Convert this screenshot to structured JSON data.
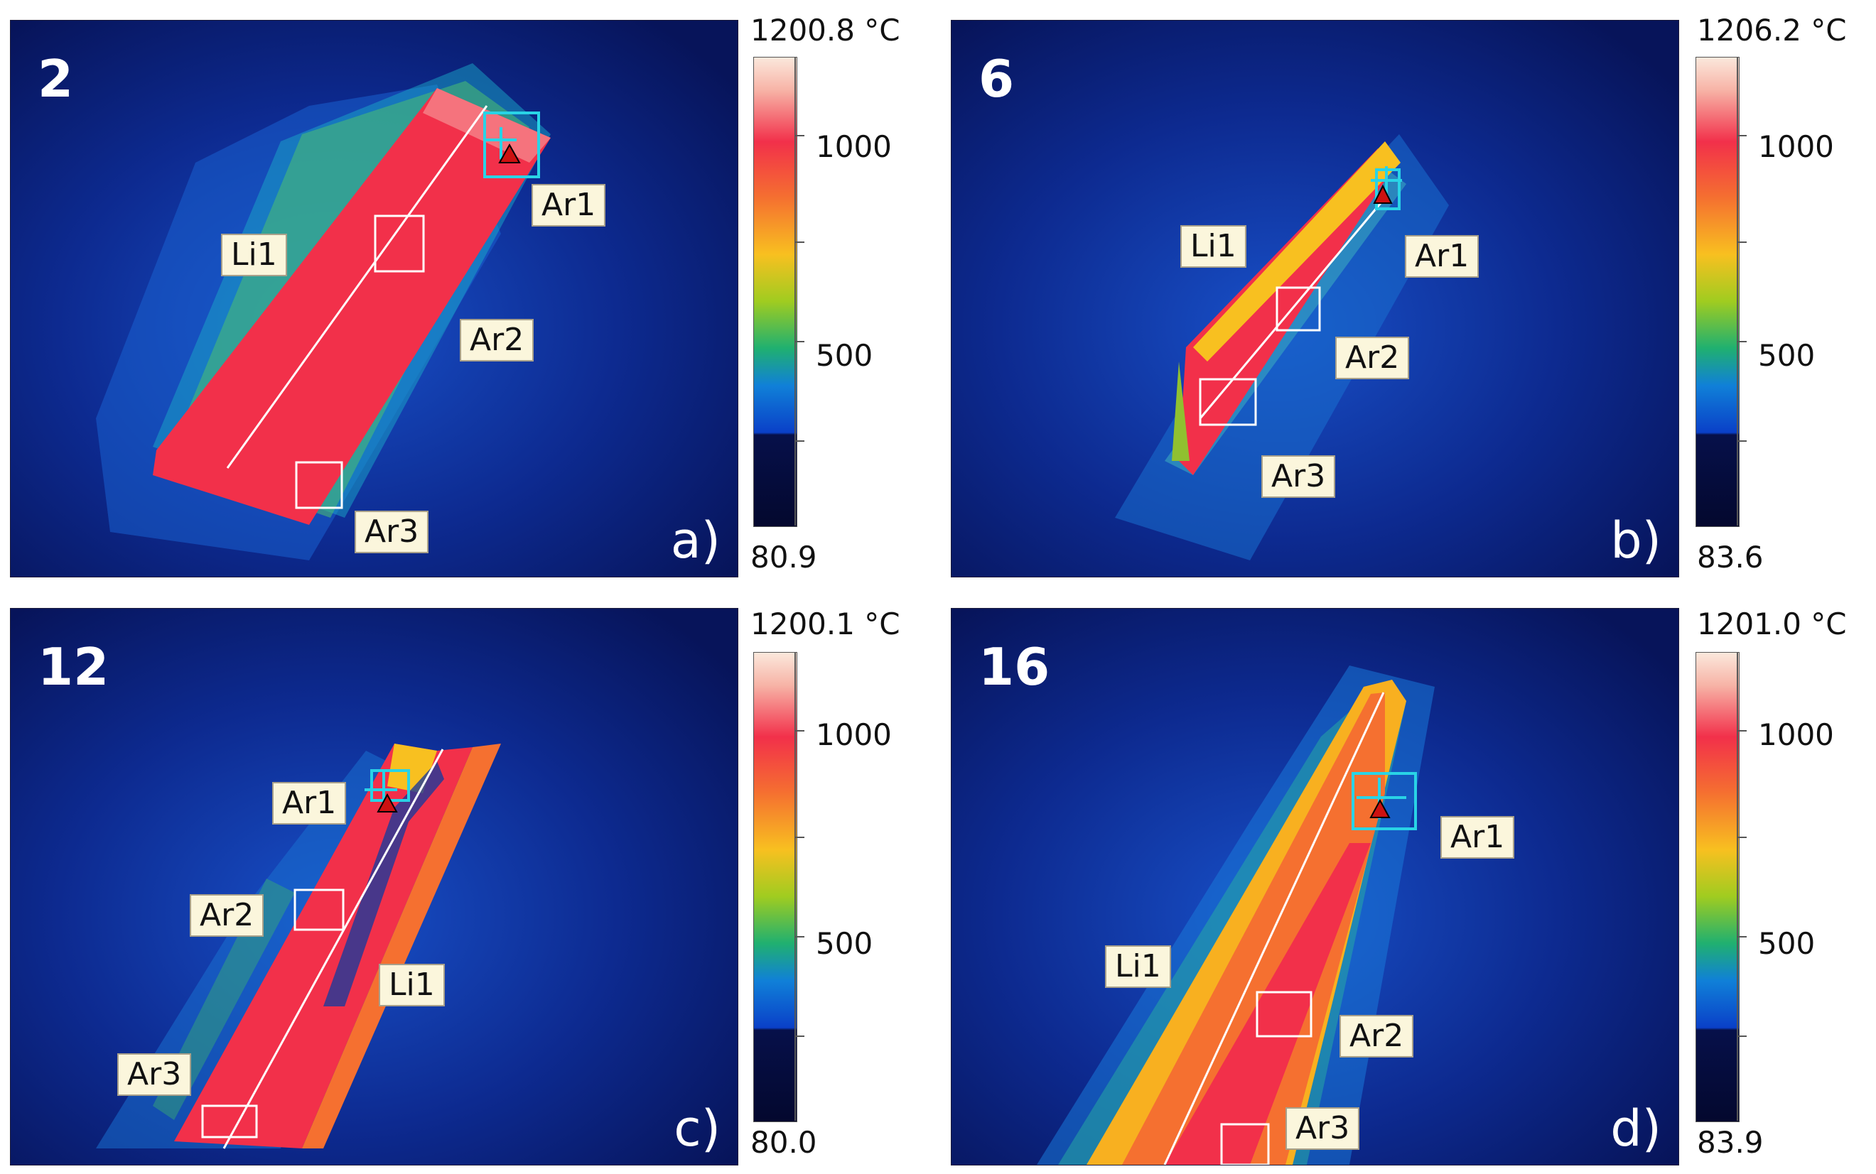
{
  "panels": [
    {
      "frame": "2",
      "letter": "a)",
      "scale_max": "1200.8 °C",
      "scale_min": "80.9",
      "labels": {
        "ar1": "Ar1",
        "ar2": "Ar2",
        "ar3": "Ar3",
        "li1": "Li1"
      },
      "ticks": {
        "t1000": "1000",
        "t500": "500"
      }
    },
    {
      "frame": "6",
      "letter": "b)",
      "scale_max": "1206.2 °C",
      "scale_min": "83.6",
      "labels": {
        "ar1": "Ar1",
        "ar2": "Ar2",
        "ar3": "Ar3",
        "li1": "Li1"
      },
      "ticks": {
        "t1000": "1000",
        "t500": "500"
      }
    },
    {
      "frame": "12",
      "letter": "c)",
      "scale_max": "1200.1 °C",
      "scale_min": "80.0",
      "labels": {
        "ar1": "Ar1",
        "ar2": "Ar2",
        "ar3": "Ar3",
        "li1": "Li1"
      },
      "ticks": {
        "t1000": "1000",
        "t500": "500"
      }
    },
    {
      "frame": "16",
      "letter": "d)",
      "scale_max": "1201.0 °C",
      "scale_min": "83.9",
      "labels": {
        "ar1": "Ar1",
        "ar2": "Ar2",
        "ar3": "Ar3",
        "li1": "Li1"
      },
      "ticks": {
        "t1000": "1000",
        "t500": "500"
      }
    }
  ],
  "colors": {
    "background": "#0a1a6e",
    "hot": "#f2304a",
    "warm": "#f8a020",
    "cool": "#2ab04a",
    "marker_cyan": "#29d3e6",
    "marker_white": "#ffffff",
    "triangle": "#cc1111"
  }
}
